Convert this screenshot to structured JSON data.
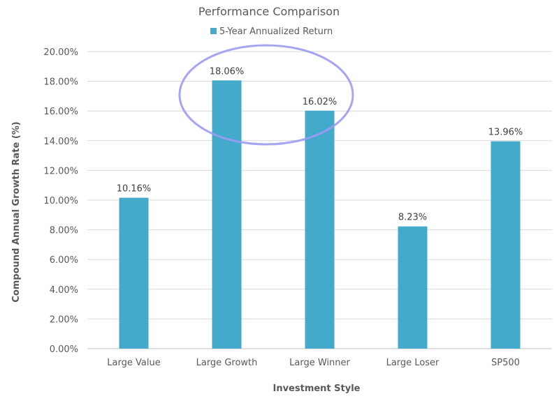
{
  "chart_data": {
    "type": "bar",
    "title": "Performance Comparison",
    "categories": [
      "Large Value",
      "Large Growth",
      "Large Winner",
      "Large Loser",
      "SP500"
    ],
    "series": [
      {
        "name": "5-Year Annualized Return",
        "values": [
          10.16,
          18.06,
          16.02,
          8.23,
          13.96
        ],
        "labels": [
          "10.16%",
          "18.06%",
          "16.02%",
          "8.23%",
          "13.96%"
        ]
      }
    ],
    "xlabel": "Investment Style",
    "ylabel": "Compound Annual Growth Rate (%)",
    "ylim": [
      0,
      20
    ],
    "yticks": [
      "0.00%",
      "2.00%",
      "4.00%",
      "6.00%",
      "8.00%",
      "10.00%",
      "12.00%",
      "14.00%",
      "16.00%",
      "18.00%",
      "20.00%"
    ],
    "grid": true,
    "legend": "top",
    "bar_color": "#43aacb",
    "annotation": {
      "shape": "ellipse",
      "color": "#9b9bf0",
      "around": [
        "Large Growth",
        "Large Winner"
      ]
    }
  }
}
